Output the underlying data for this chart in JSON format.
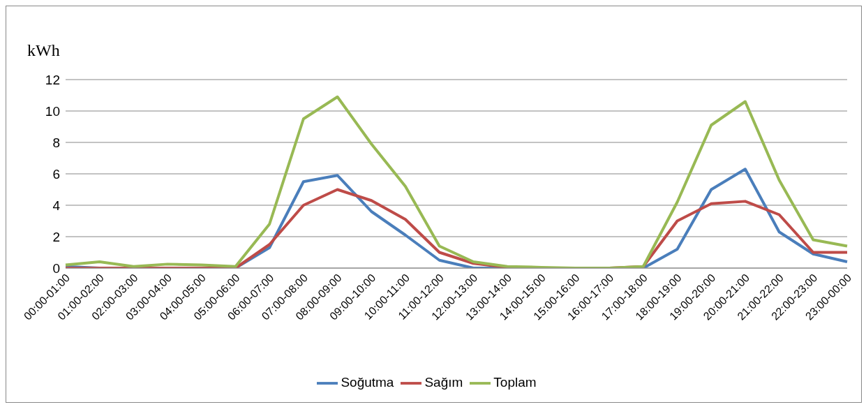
{
  "chart_data": {
    "type": "line",
    "ylabel": "kWh",
    "categories": [
      "00:00-01:00",
      "01:00-02:00",
      "02:00-03:00",
      "03:00-04:00",
      "04:00-05:00",
      "05:00-06:00",
      "06:00-07:00",
      "07:00-08:00",
      "08:00-09:00",
      "09:00-10:00",
      "10:00-11:00",
      "11:00-12:00",
      "12:00-13:00",
      "13:00-14:00",
      "14:00-15:00",
      "15:00-16:00",
      "16:00-17:00",
      "17:00-18:00",
      "18:00-19:00",
      "19:00-20:00",
      "20:00-21:00",
      "21:00-22:00",
      "22:00-23:00",
      "23:00-00:00"
    ],
    "series": [
      {
        "name": "Soğutma",
        "color": "#4a7ebb",
        "values": [
          0.1,
          0,
          0,
          0,
          0,
          0,
          1.3,
          5.5,
          5.9,
          3.6,
          2.1,
          0.5,
          0,
          0,
          0,
          0,
          0,
          0,
          1.2,
          5.0,
          6.3,
          2.3,
          0.9,
          0.4
        ]
      },
      {
        "name": "Sağım",
        "color": "#be4b48",
        "values": [
          0,
          0,
          0,
          0,
          0,
          0,
          1.5,
          4.0,
          5.0,
          4.3,
          3.1,
          1.0,
          0.3,
          0.05,
          0,
          0,
          0,
          0.1,
          3.0,
          4.1,
          4.25,
          3.4,
          1.0,
          1.0
        ]
      },
      {
        "name": "Toplam",
        "color": "#98b954",
        "values": [
          0.2,
          0.4,
          0.1,
          0.25,
          0.2,
          0.1,
          2.8,
          9.5,
          10.9,
          7.9,
          5.2,
          1.4,
          0.4,
          0.1,
          0.05,
          0,
          0,
          0.1,
          4.2,
          9.1,
          10.6,
          5.6,
          1.8,
          1.4
        ]
      }
    ],
    "ylim": [
      0,
      12
    ],
    "yticks": [
      0,
      2,
      4,
      6,
      8,
      10,
      12
    ],
    "grid": "y",
    "legend": "bottom",
    "marker": "none",
    "line_style": "solid"
  }
}
